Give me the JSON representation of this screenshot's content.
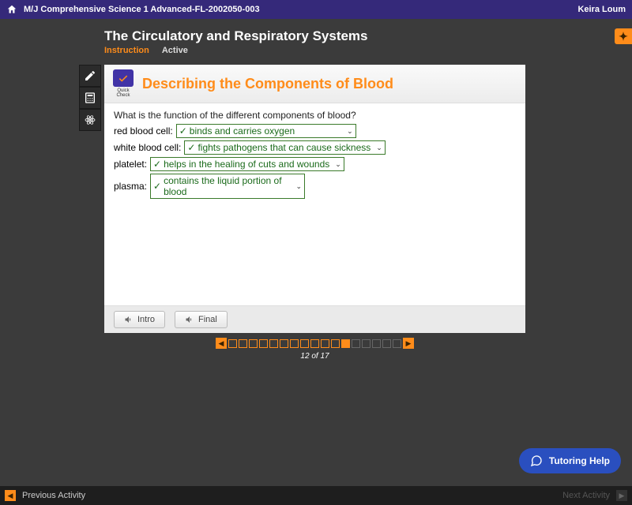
{
  "header": {
    "course_title": "M/J Comprehensive Science 1 Advanced-FL-2002050-003",
    "user_name": "Keira Loum"
  },
  "lesson": {
    "title": "The Circulatory and Respiratory Systems",
    "tabs": {
      "active": "Instruction",
      "inactive": "Active"
    }
  },
  "slide": {
    "badge_label": "Quick Check",
    "title": "Describing the Components of Blood",
    "question": "What is the function of the different components of blood?",
    "rows": [
      {
        "label": "red blood cell:",
        "value": "binds and carries oxygen"
      },
      {
        "label": "white blood cell:",
        "value": "fights pathogens that can cause sickness"
      },
      {
        "label": "platelet:",
        "value": "helps in the healing of cuts and wounds"
      },
      {
        "label": "plasma:",
        "value": "contains the liquid portion of blood"
      }
    ],
    "footer": {
      "intro": "Intro",
      "final": "Final"
    }
  },
  "pager": {
    "current": 12,
    "total": 17,
    "display": "12 of 17"
  },
  "tutoring": {
    "label": "Tutoring Help"
  },
  "bottom": {
    "prev": "Previous Activity",
    "next": "Next Activity"
  },
  "colors": {
    "brand_purple": "#35297a",
    "accent_orange": "#ff8c1a",
    "bg_dark": "#3b3b3b",
    "select_green": "#1a6a1a",
    "tutoring_blue": "#2a4fbf"
  }
}
